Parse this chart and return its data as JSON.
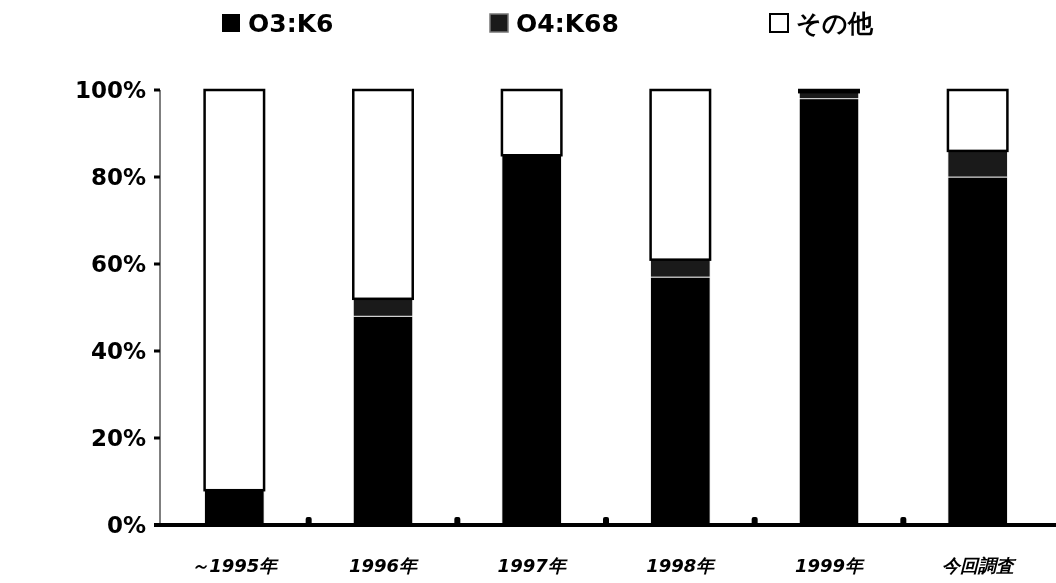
{
  "chart_data": {
    "type": "bar",
    "stacked": true,
    "categories": [
      "～1995年",
      "1996年",
      "1997年",
      "1998年",
      "1999年",
      "今回調査"
    ],
    "series": [
      {
        "name": "O3:K6",
        "color": "#000000",
        "values": [
          8,
          48,
          85,
          57,
          98,
          80
        ]
      },
      {
        "name": "O4:K68",
        "color": "#1a1a1a",
        "values": [
          0,
          4,
          0,
          4,
          1.5,
          6
        ]
      },
      {
        "name": "その他",
        "color": "#ffffff",
        "values": [
          92,
          48,
          15,
          39,
          0.5,
          14
        ]
      }
    ],
    "ylim": [
      0,
      100
    ],
    "yticks": [
      {
        "value": 0,
        "label": "0%"
      },
      {
        "value": 20,
        "label": "20%"
      },
      {
        "value": 40,
        "label": "40%"
      },
      {
        "value": 60,
        "label": "60%"
      },
      {
        "value": 80,
        "label": "80%"
      },
      {
        "value": 100,
        "label": "100%"
      }
    ],
    "grid": false,
    "legend": "top"
  }
}
